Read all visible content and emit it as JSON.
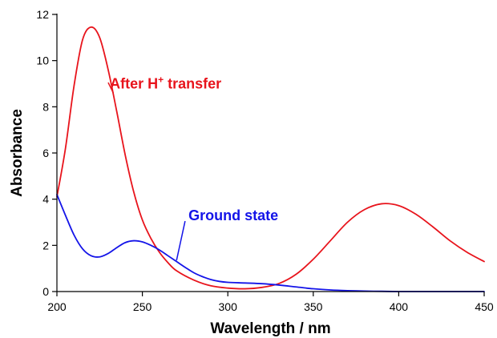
{
  "chart_data": {
    "type": "line",
    "xlabel": "Wavelength / nm",
    "ylabel": "Absorbance",
    "xlim": [
      200,
      450
    ],
    "ylim": [
      0,
      12
    ],
    "x_ticks": [
      200,
      250,
      300,
      350,
      400,
      450
    ],
    "y_ticks": [
      0,
      2,
      4,
      6,
      8,
      10,
      12
    ],
    "grid": false,
    "legend": "none",
    "series": [
      {
        "color": "#e8141c",
        "points": [
          [
            200,
            4.1
          ],
          [
            205,
            6.2
          ],
          [
            210,
            8.9
          ],
          [
            215,
            10.9
          ],
          [
            220,
            11.45
          ],
          [
            225,
            11.0
          ],
          [
            230,
            9.6
          ],
          [
            235,
            7.8
          ],
          [
            240,
            5.9
          ],
          [
            245,
            4.3
          ],
          [
            250,
            3.1
          ],
          [
            255,
            2.3
          ],
          [
            260,
            1.7
          ],
          [
            265,
            1.25
          ],
          [
            270,
            0.9
          ],
          [
            280,
            0.5
          ],
          [
            290,
            0.25
          ],
          [
            300,
            0.15
          ],
          [
            310,
            0.12
          ],
          [
            320,
            0.18
          ],
          [
            330,
            0.35
          ],
          [
            340,
            0.75
          ],
          [
            350,
            1.4
          ],
          [
            360,
            2.2
          ],
          [
            370,
            3.0
          ],
          [
            380,
            3.55
          ],
          [
            390,
            3.8
          ],
          [
            400,
            3.72
          ],
          [
            410,
            3.35
          ],
          [
            420,
            2.8
          ],
          [
            430,
            2.2
          ],
          [
            440,
            1.7
          ],
          [
            450,
            1.3
          ]
        ]
      },
      {
        "color": "#1414e8",
        "points": [
          [
            200,
            4.2
          ],
          [
            205,
            3.3
          ],
          [
            210,
            2.45
          ],
          [
            215,
            1.85
          ],
          [
            220,
            1.55
          ],
          [
            225,
            1.5
          ],
          [
            230,
            1.65
          ],
          [
            235,
            1.9
          ],
          [
            240,
            2.12
          ],
          [
            245,
            2.2
          ],
          [
            250,
            2.15
          ],
          [
            255,
            2.0
          ],
          [
            260,
            1.8
          ],
          [
            265,
            1.55
          ],
          [
            270,
            1.3
          ],
          [
            275,
            1.05
          ],
          [
            280,
            0.82
          ],
          [
            285,
            0.65
          ],
          [
            290,
            0.52
          ],
          [
            295,
            0.44
          ],
          [
            300,
            0.4
          ],
          [
            310,
            0.37
          ],
          [
            320,
            0.34
          ],
          [
            330,
            0.28
          ],
          [
            340,
            0.2
          ],
          [
            350,
            0.12
          ],
          [
            360,
            0.07
          ],
          [
            370,
            0.04
          ],
          [
            380,
            0.02
          ],
          [
            390,
            0.01
          ],
          [
            400,
            0.0
          ],
          [
            420,
            0.0
          ],
          [
            450,
            0.0
          ]
        ]
      }
    ],
    "annotations": [
      {
        "text_main": "After H",
        "text_sup": "+",
        "text_rest": " transfer",
        "color": "#e8141c",
        "text_at": [
          231,
          9.0
        ],
        "arrow_from": [
          230,
          9.05
        ],
        "arrow_to": [
          233,
          8.6
        ]
      },
      {
        "text_main": "Ground state",
        "text_sup": "",
        "text_rest": "",
        "color": "#1414e8",
        "text_at": [
          277,
          3.3
        ],
        "arrow_from": [
          275,
          3.05
        ],
        "arrow_to": [
          270,
          1.35
        ]
      }
    ]
  }
}
